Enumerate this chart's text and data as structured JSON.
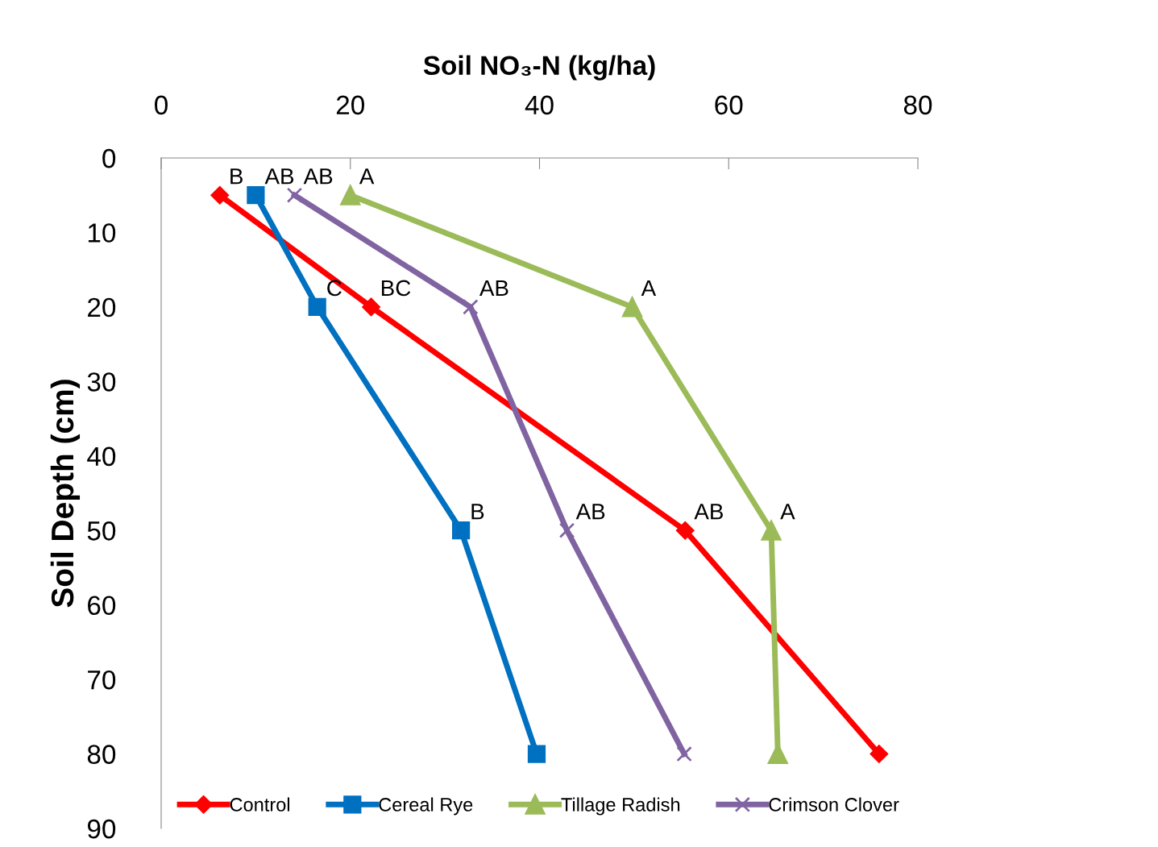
{
  "chart_data": {
    "type": "line",
    "xlabel": "Soil NO₃-N (kg/ha)",
    "ylabel": "Soil Depth (cm)",
    "xlim": [
      0,
      80
    ],
    "xticks": [
      0,
      20,
      40,
      60,
      80
    ],
    "ylim": [
      90,
      0
    ],
    "yticks": [
      0,
      10,
      20,
      30,
      40,
      50,
      60,
      70,
      80,
      90
    ],
    "grid": false,
    "legend": "bottom",
    "series": [
      {
        "name": "Control",
        "color": "#ff0000",
        "marker": "diamond",
        "x": [
          6.2,
          22.2,
          55.4,
          75.9
        ],
        "values": [
          5,
          20,
          50,
          80
        ]
      },
      {
        "name": "Cereal Rye",
        "color": "#0070c0",
        "marker": "square",
        "x": [
          10.0,
          16.5,
          31.7,
          39.7
        ],
        "values": [
          5,
          20,
          50,
          80
        ]
      },
      {
        "name": "Tillage Radish",
        "color": "#9bbb59",
        "marker": "triangle",
        "x": [
          20.0,
          49.8,
          64.5,
          65.2
        ],
        "values": [
          5,
          20,
          50,
          80
        ]
      },
      {
        "name": "Crimson Clover",
        "color": "#8064a2",
        "marker": "cross",
        "x": [
          14.1,
          32.7,
          42.9,
          55.3
        ],
        "values": [
          5,
          20,
          50,
          80
        ]
      }
    ],
    "annotations": [
      {
        "text": "B",
        "x": 6.2,
        "y": 5
      },
      {
        "text": "AB",
        "x": 10.0,
        "y": 5
      },
      {
        "text": "AB",
        "x": 14.1,
        "y": 5
      },
      {
        "text": "A",
        "x": 20.0,
        "y": 5
      },
      {
        "text": "C",
        "x": 16.5,
        "y": 20
      },
      {
        "text": "BC",
        "x": 22.2,
        "y": 20
      },
      {
        "text": "AB",
        "x": 32.7,
        "y": 20
      },
      {
        "text": "A",
        "x": 49.8,
        "y": 20
      },
      {
        "text": "B",
        "x": 31.7,
        "y": 50
      },
      {
        "text": "AB",
        "x": 42.9,
        "y": 50
      },
      {
        "text": "AB",
        "x": 55.4,
        "y": 50
      },
      {
        "text": "A",
        "x": 64.5,
        "y": 50
      }
    ]
  }
}
